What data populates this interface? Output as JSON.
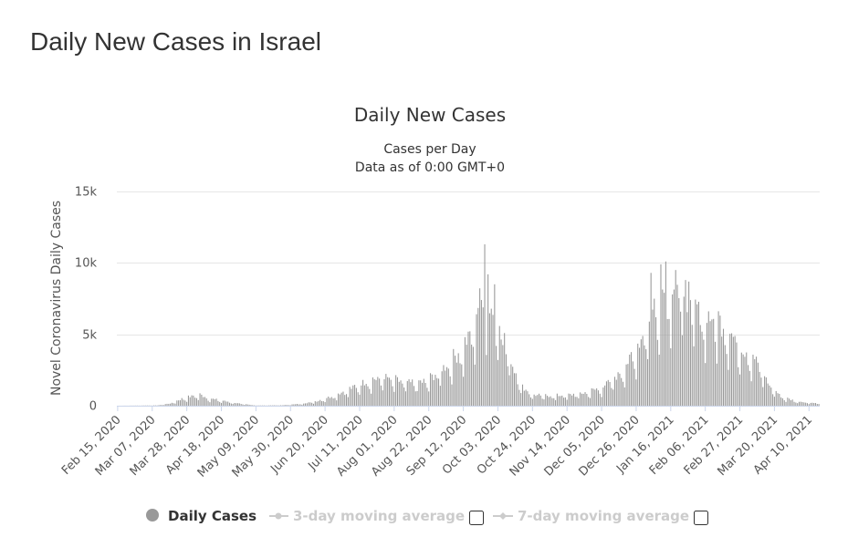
{
  "page": {
    "heading": "Daily New Cases in Israel"
  },
  "chart_data": {
    "type": "bar",
    "title": "Daily New Cases",
    "subtitle_lines": [
      "Cases per Day",
      "Data as of 0:00 GMT+0"
    ],
    "ylabel": "Novel Coronavirus Daily Cases",
    "xlabel": "",
    "ylim": [
      0,
      15000
    ],
    "y_ticks": [
      {
        "value": 0,
        "label": "0"
      },
      {
        "value": 5000,
        "label": "5k"
      },
      {
        "value": 10000,
        "label": "10k"
      },
      {
        "value": 15000,
        "label": "15k"
      }
    ],
    "x_start": "2020-02-15",
    "x_end": "2021-04-16",
    "x_tick_labels": [
      "Feb 15, 2020",
      "Mar 07, 2020",
      "Mar 28, 2020",
      "Apr 18, 2020",
      "May 09, 2020",
      "May 30, 2020",
      "Jun 20, 2020",
      "Jul 11, 2020",
      "Aug 01, 2020",
      "Aug 22, 2020",
      "Sep 12, 2020",
      "Oct 03, 2020",
      "Oct 24, 2020",
      "Nov 14, 2020",
      "Dec 05, 2020",
      "Dec 26, 2020",
      "Jan 16, 2021",
      "Feb 06, 2021",
      "Feb 27, 2021",
      "Mar 20, 2021",
      "Apr 10, 2021"
    ],
    "grid": true,
    "legend_position": "bottom",
    "bar_color": "#999999",
    "series": [
      {
        "name": "Daily Cases",
        "key_points": [
          [
            "2020-02-15",
            0
          ],
          [
            "2020-03-10",
            20
          ],
          [
            "2020-03-18",
            150
          ],
          [
            "2020-03-25",
            450
          ],
          [
            "2020-04-01",
            650
          ],
          [
            "2020-04-05",
            720
          ],
          [
            "2020-04-12",
            450
          ],
          [
            "2020-04-20",
            300
          ],
          [
            "2020-04-30",
            120
          ],
          [
            "2020-05-10",
            15
          ],
          [
            "2020-05-25",
            30
          ],
          [
            "2020-06-05",
            120
          ],
          [
            "2020-06-15",
            300
          ],
          [
            "2020-06-25",
            650
          ],
          [
            "2020-07-05",
            1100
          ],
          [
            "2020-07-15",
            1600
          ],
          [
            "2020-07-25",
            1900
          ],
          [
            "2020-08-01",
            1700
          ],
          [
            "2020-08-10",
            1500
          ],
          [
            "2020-08-20",
            1600
          ],
          [
            "2020-08-28",
            2200
          ],
          [
            "2020-09-05",
            3000
          ],
          [
            "2020-09-12",
            3800
          ],
          [
            "2020-09-18",
            5000
          ],
          [
            "2020-09-23",
            7500
          ],
          [
            "2020-09-29",
            6500
          ],
          [
            "2020-10-05",
            5000
          ],
          [
            "2020-10-12",
            2600
          ],
          [
            "2020-10-18",
            1200
          ],
          [
            "2020-10-25",
            700
          ],
          [
            "2020-11-05",
            650
          ],
          [
            "2020-11-15",
            700
          ],
          [
            "2020-11-25",
            850
          ],
          [
            "2020-12-05",
            1200
          ],
          [
            "2020-12-15",
            2000
          ],
          [
            "2020-12-25",
            3400
          ],
          [
            "2021-01-02",
            5500
          ],
          [
            "2021-01-10",
            7500
          ],
          [
            "2021-01-18",
            8000
          ],
          [
            "2021-01-25",
            7500
          ],
          [
            "2021-02-03",
            6000
          ],
          [
            "2021-02-12",
            5800
          ],
          [
            "2021-02-20",
            5000
          ],
          [
            "2021-02-28",
            3800
          ],
          [
            "2021-03-08",
            3200
          ],
          [
            "2021-03-16",
            1500
          ],
          [
            "2021-03-24",
            600
          ],
          [
            "2021-04-02",
            300
          ],
          [
            "2021-04-16",
            150
          ]
        ],
        "peaks": [
          [
            "2020-09-25",
            11300
          ],
          [
            "2020-09-27",
            9200
          ],
          [
            "2020-10-01",
            8500
          ],
          [
            "2020-09-23",
            7400
          ],
          [
            "2021-01-04",
            9300
          ],
          [
            "2021-01-10",
            9900
          ],
          [
            "2021-01-13",
            10100
          ],
          [
            "2021-01-19",
            9500
          ],
          [
            "2021-01-25",
            8800
          ],
          [
            "2021-02-01",
            7100
          ],
          [
            "2021-02-07",
            5800
          ]
        ]
      },
      {
        "name": "3-day moving average",
        "enabled": false
      },
      {
        "name": "7-day moving average",
        "enabled": false
      }
    ]
  },
  "legend": {
    "items": [
      {
        "label": "Daily Cases",
        "enabled": true
      },
      {
        "label": "3-day moving average",
        "enabled": false
      },
      {
        "label": "7-day moving average",
        "enabled": false
      }
    ]
  }
}
